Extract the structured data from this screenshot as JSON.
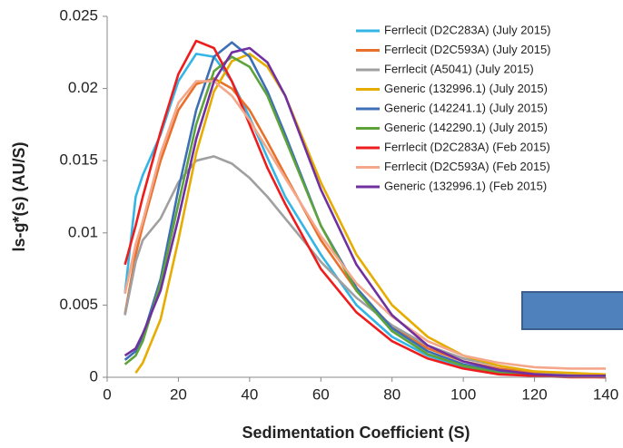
{
  "chart_data": {
    "type": "line",
    "x_label": "Sedimentation Coefficient (S)",
    "y_label": "ls-g*(s) (AU/S)",
    "x": [
      5,
      8,
      10,
      15,
      20,
      25,
      30,
      35,
      40,
      45,
      50,
      60,
      70,
      80,
      90,
      100,
      110,
      120,
      130,
      140
    ],
    "xlim": [
      0,
      140
    ],
    "xticks": [
      0,
      20,
      40,
      60,
      80,
      100,
      120,
      140
    ],
    "ylim": [
      0,
      0.025
    ],
    "yticks": [
      0,
      0.005,
      0.01,
      0.015,
      0.02,
      0.025
    ],
    "grid": false,
    "legend": "upper right",
    "series": [
      {
        "name": "Ferrlecit (D2C283A) (July 2015)",
        "color": "#33b5e5",
        "values": [
          0.0058,
          0.0125,
          0.014,
          0.0168,
          0.0205,
          0.0224,
          0.0222,
          0.0205,
          0.018,
          0.0152,
          0.0125,
          0.0085,
          0.005,
          0.0028,
          0.0015,
          0.0007,
          0.0003,
          0.0001,
          5e-05,
          0
        ]
      },
      {
        "name": "Ferrlecit (D2C593A) (July 2015)",
        "color": "#e8702a",
        "values": [
          0.0044,
          0.0085,
          0.0105,
          0.015,
          0.0185,
          0.0203,
          0.0207,
          0.02,
          0.0185,
          0.0163,
          0.014,
          0.0095,
          0.006,
          0.0035,
          0.002,
          0.0011,
          0.0006,
          0.0003,
          0.0002,
          0.0001
        ]
      },
      {
        "name": "Ferrlecit (A5041) (July 2015)",
        "color": "#a0a0a0",
        "values": [
          0.0043,
          0.008,
          0.0095,
          0.011,
          0.0135,
          0.015,
          0.0153,
          0.0148,
          0.0138,
          0.0125,
          0.011,
          0.008,
          0.0055,
          0.0036,
          0.0022,
          0.0013,
          0.0008,
          0.0004,
          0.0002,
          0.0001
        ]
      },
      {
        "name": "Generic (132996.1) (July 2015)",
        "color": "#e6ad00",
        "values": [
          null,
          0.0003,
          0.001,
          0.004,
          0.0095,
          0.0155,
          0.0198,
          0.0219,
          0.0224,
          0.0215,
          0.0195,
          0.0135,
          0.0085,
          0.005,
          0.0028,
          0.0015,
          0.0008,
          0.0004,
          0.0003,
          0.0002
        ]
      },
      {
        "name": "Generic (142241.1) (July 2015)",
        "color": "#3d6fb6",
        "values": [
          0.0012,
          0.0018,
          0.0028,
          0.0068,
          0.013,
          0.0185,
          0.0222,
          0.0232,
          0.0222,
          0.0198,
          0.0168,
          0.0105,
          0.0062,
          0.0034,
          0.0018,
          0.0009,
          0.0004,
          0.0002,
          0.0001,
          0
        ]
      },
      {
        "name": "Generic (142290.1) (July 2015)",
        "color": "#5ea33a",
        "values": [
          0.0009,
          0.0015,
          0.0025,
          0.0065,
          0.012,
          0.0175,
          0.0212,
          0.0222,
          0.0215,
          0.0195,
          0.0165,
          0.0105,
          0.006,
          0.0032,
          0.0016,
          0.0008,
          0.0003,
          0.0001,
          5e-05,
          0
        ]
      },
      {
        "name": "Ferrlecit (D2C283A) (Feb 2015)",
        "color": "#ee1c1c",
        "values": [
          0.0078,
          0.0105,
          0.0125,
          0.017,
          0.021,
          0.0233,
          0.0228,
          0.0205,
          0.0175,
          0.0145,
          0.012,
          0.0075,
          0.0045,
          0.0025,
          0.0013,
          0.0006,
          0.0002,
          0.0001,
          0,
          0
        ]
      },
      {
        "name": "Ferrlecit (D2C593A) (Feb 2015)",
        "color": "#f4a78a",
        "values": [
          0.0058,
          0.0092,
          0.0108,
          0.0155,
          0.019,
          0.0205,
          0.0205,
          0.0195,
          0.0178,
          0.0158,
          0.0138,
          0.0098,
          0.0065,
          0.0042,
          0.0025,
          0.0015,
          0.001,
          0.0007,
          0.0006,
          0.0006
        ]
      },
      {
        "name": "Generic (132996.1) (Feb 2015)",
        "color": "#7030a0",
        "values": [
          0.0015,
          0.002,
          0.003,
          0.006,
          0.011,
          0.0165,
          0.0205,
          0.0225,
          0.0228,
          0.0218,
          0.0195,
          0.013,
          0.0078,
          0.0043,
          0.0022,
          0.0011,
          0.0005,
          0.0002,
          0.0001,
          0.0001
        ]
      }
    ]
  }
}
